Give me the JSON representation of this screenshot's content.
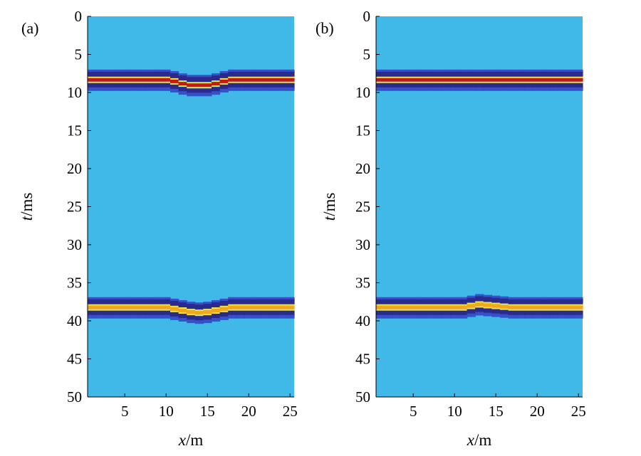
{
  "colors": {
    "background": "#40b8e8",
    "negative_dark": "#2b2a8c",
    "negative_mid": "#3550c8",
    "positive_high": "#c21a1a",
    "positive_mid": "#f3a51d",
    "positive_low": "#e8e64a",
    "axis": "#000000"
  },
  "chart_data": [
    {
      "type": "heatmap",
      "panel_label": "(a)",
      "xlabel_var": "x",
      "xlabel_unit": "/m",
      "ylabel_var": "t",
      "ylabel_unit": "/ms",
      "xlim": [
        0.5,
        25.5
      ],
      "ylim": [
        0,
        50
      ],
      "y_reversed": true,
      "xticks": [
        5,
        10,
        15,
        20,
        25
      ],
      "yticks": [
        0,
        5,
        10,
        15,
        20,
        25,
        30,
        35,
        40,
        45,
        50
      ],
      "events": [
        {
          "baseline_t": 8.3,
          "polarity": "positive",
          "peak": "red",
          "x": [
            1,
            10,
            11,
            12,
            13,
            14,
            15,
            16,
            17,
            18,
            25
          ],
          "t": [
            8.3,
            8.3,
            8.5,
            8.8,
            9.0,
            9.0,
            9.0,
            8.8,
            8.5,
            8.3,
            8.3
          ]
        },
        {
          "baseline_t": 38.2,
          "polarity": "positive",
          "peak": "orange",
          "x": [
            1,
            10,
            11,
            12,
            13,
            14,
            15,
            16,
            17,
            18,
            25
          ],
          "t": [
            38.2,
            38.2,
            38.4,
            38.6,
            38.8,
            38.9,
            38.8,
            38.6,
            38.4,
            38.2,
            38.2
          ]
        }
      ]
    },
    {
      "type": "heatmap",
      "panel_label": "(b)",
      "xlabel_var": "x",
      "xlabel_unit": "/m",
      "ylabel_var": "t",
      "ylabel_unit": "/ms",
      "xlim": [
        0.5,
        25.5
      ],
      "ylim": [
        0,
        50
      ],
      "y_reversed": true,
      "xticks": [
        5,
        10,
        15,
        20,
        25
      ],
      "yticks": [
        0,
        5,
        10,
        15,
        20,
        25,
        30,
        35,
        40,
        45,
        50
      ],
      "events": [
        {
          "baseline_t": 8.3,
          "polarity": "positive",
          "peak": "red",
          "x": [
            1,
            25
          ],
          "t": [
            8.3,
            8.3
          ]
        },
        {
          "baseline_t": 38.2,
          "polarity": "positive",
          "peak": "orange",
          "x": [
            1,
            11,
            12,
            13,
            14,
            15,
            16,
            17,
            25
          ],
          "t": [
            38.2,
            38.2,
            38.0,
            37.8,
            37.9,
            38.0,
            38.1,
            38.2,
            38.2
          ]
        }
      ]
    }
  ]
}
